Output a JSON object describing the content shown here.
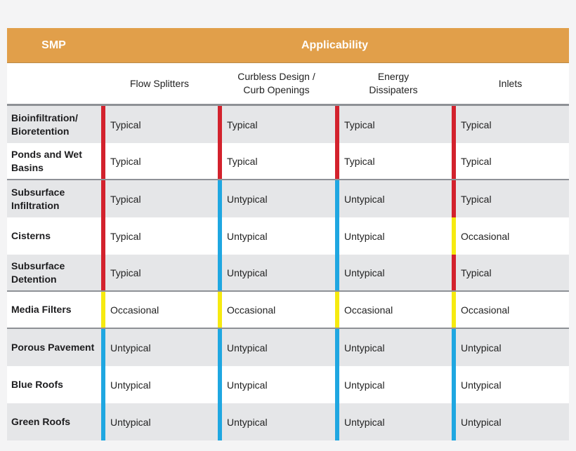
{
  "header": {
    "smp_label": "SMP",
    "applicability_label": "Applicability"
  },
  "columns": [
    "Flow Splitters",
    "Curbless Design /\nCurb Openings",
    "Energy\nDissipaters",
    "Inlets"
  ],
  "rows": [
    {
      "smp": "Bioinfiltration/\nBioretention",
      "values": [
        "Typical",
        "Typical",
        "Typical",
        "Typical"
      ]
    },
    {
      "smp": "Ponds and Wet\nBasins",
      "values": [
        "Typical",
        "Typical",
        "Typical",
        "Typical"
      ]
    },
    {
      "smp": "Subsurface\nInfiltration",
      "values": [
        "Typical",
        "Untypical",
        "Untypical",
        "Typical"
      ]
    },
    {
      "smp": "Cisterns",
      "values": [
        "Typical",
        "Untypical",
        "Untypical",
        "Occasional"
      ]
    },
    {
      "smp": "Subsurface\nDetention",
      "values": [
        "Typical",
        "Untypical",
        "Untypical",
        "Typical"
      ]
    },
    {
      "smp": "Media Filters",
      "values": [
        "Occasional",
        "Occasional",
        "Occasional",
        "Occasional"
      ]
    },
    {
      "smp": "Porous Pavement",
      "values": [
        "Untypical",
        "Untypical",
        "Untypical",
        "Untypical"
      ]
    },
    {
      "smp": "Blue Roofs",
      "values": [
        "Untypical",
        "Untypical",
        "Untypical",
        "Untypical"
      ]
    },
    {
      "smp": "Green Roofs",
      "values": [
        "Untypical",
        "Untypical",
        "Untypical",
        "Untypical"
      ]
    }
  ],
  "colors": {
    "header_bg": "#e19f4a",
    "typical": "#d3222d",
    "untypical": "#1fa7e1",
    "occasional": "#f6ea10"
  }
}
